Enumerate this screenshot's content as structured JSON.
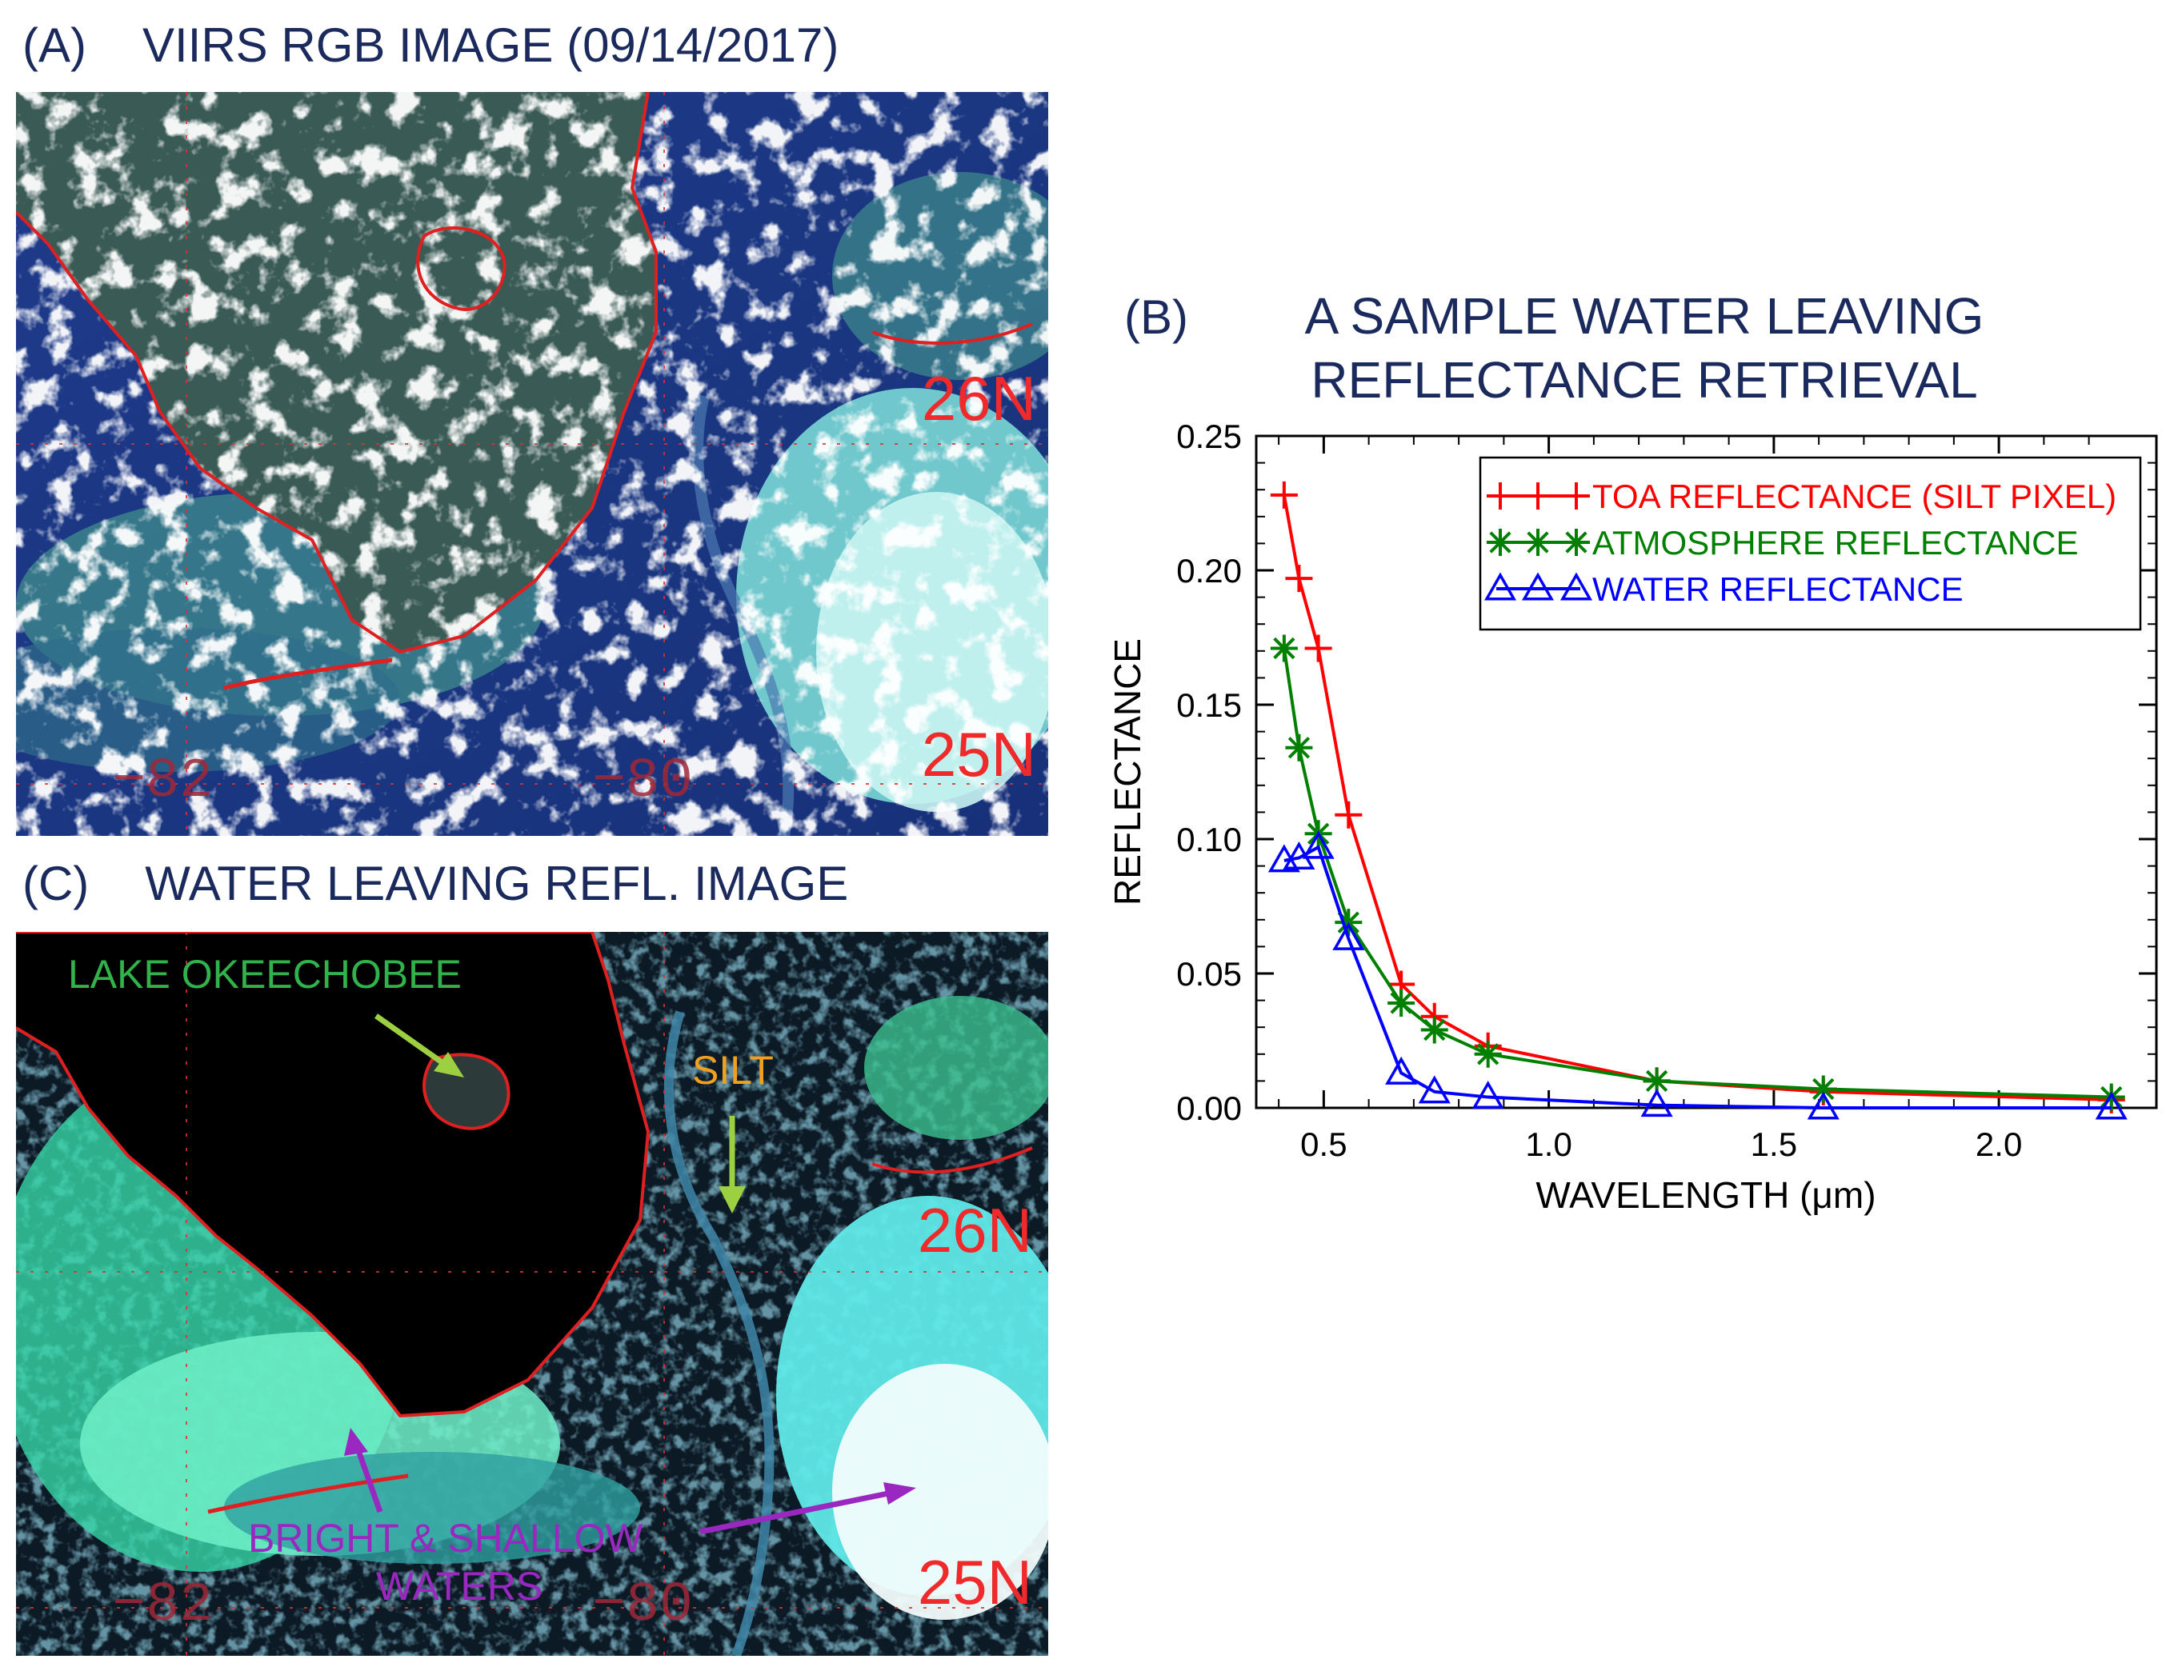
{
  "panel_a": {
    "letter": "(A)",
    "title": "VIIRS RGB IMAGE (09/14/2017)",
    "labels": {
      "lat_26": "26N",
      "lat_25": "25N",
      "lon_82": "−82",
      "lon_80": "−80"
    }
  },
  "panel_c": {
    "letter": "(C)",
    "title": "WATER LEAVING REFL. IMAGE",
    "labels": {
      "lat_26": "26N",
      "lat_25": "25N",
      "lon_82": "−82",
      "lon_80": "−80",
      "lake": "LAKE OKEECHOBEE",
      "silt": "SILT",
      "bright_line1": "BRIGHT & SHALLOW",
      "bright_line2": "WATERS"
    }
  },
  "colors": {
    "title": "#1b2a5c",
    "coast": "#e02020",
    "label_red": "#f02a2a",
    "lake_green": "#2fb34a",
    "silt_orange": "#f0a020",
    "arrow_green": "#9cd040",
    "annot_purple": "#9a28c0",
    "toa": "#ff0000",
    "atm": "#008000",
    "water": "#0000ff"
  },
  "chart_data": {
    "type": "line",
    "letter": "(B)",
    "title": [
      "A SAMPLE WATER LEAVING",
      "REFLECTANCE RETRIEVAL"
    ],
    "xlabel": "WAVELENGTH (μm)",
    "ylabel": "REFLECTANCE",
    "xlim": [
      0.35,
      2.35
    ],
    "ylim": [
      0,
      0.25
    ],
    "xticks": [
      0.5,
      1.0,
      1.5,
      2.0
    ],
    "xtick_labels": [
      "0.5",
      "1.0",
      "1.5",
      "2.0"
    ],
    "yticks": [
      0,
      0.05,
      0.1,
      0.15,
      0.2,
      0.25
    ],
    "ytick_labels": [
      "0.00",
      "0.05",
      "0.10",
      "0.15",
      "0.20",
      "0.25"
    ],
    "legend_position": "top-right",
    "x": [
      0.412,
      0.445,
      0.488,
      0.555,
      0.672,
      0.746,
      0.865,
      1.24,
      1.61,
      2.25
    ],
    "series": [
      {
        "name": "TOA REFLECTANCE (SILT PIXEL)",
        "marker": "plus",
        "color": "#ff0000",
        "values": [
          0.228,
          0.197,
          0.171,
          0.109,
          0.046,
          0.034,
          0.023,
          0.01,
          0.006,
          0.003
        ]
      },
      {
        "name": "ATMOSPHERE REFLECTANCE",
        "marker": "star",
        "color": "#008000",
        "values": [
          0.171,
          0.134,
          0.102,
          0.069,
          0.039,
          0.029,
          0.02,
          0.01,
          0.007,
          0.004
        ]
      },
      {
        "name": "WATER REFLECTANCE",
        "marker": "triangle",
        "color": "#0000ff",
        "values": [
          0.092,
          0.093,
          0.097,
          0.063,
          0.013,
          0.006,
          0.004,
          0.001,
          0.0,
          0.0
        ]
      }
    ]
  }
}
